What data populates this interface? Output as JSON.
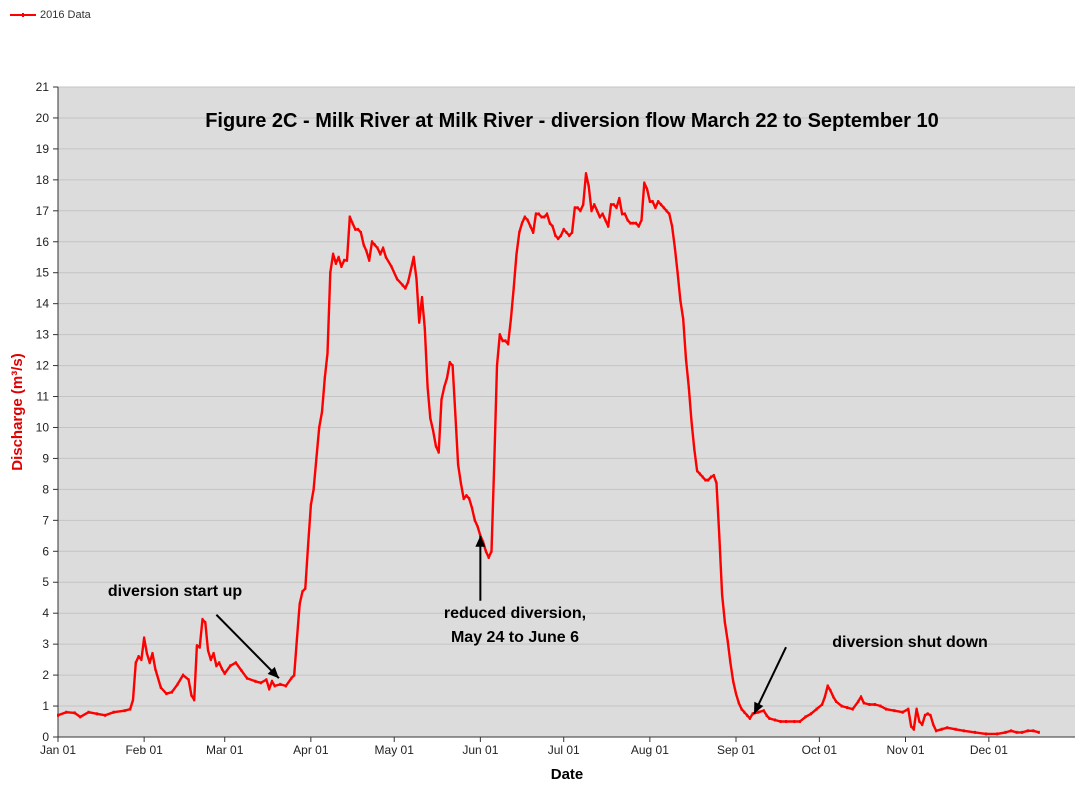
{
  "chart_data": {
    "type": "line",
    "title": "Figure 2C - Milk River at Milk River - diversion flow March 22 to September 10",
    "xlabel": "Date",
    "ylabel": "Discharge (m³/s)",
    "ylim": [
      0,
      21
    ],
    "xlim_days": [
      0,
      366
    ],
    "grid": "horizontal",
    "legend_position": "top-left",
    "colors": {
      "series": "#ff0000",
      "plot_bg": "#dcdcdc",
      "grid": "#c4c4c4",
      "ylabel": "#e00000"
    },
    "y_ticks": [
      "0",
      "1",
      "2",
      "3",
      "4",
      "5",
      "6",
      "7",
      "8",
      "9",
      "10",
      "11",
      "12",
      "13",
      "14",
      "15",
      "16",
      "17",
      "18",
      "19",
      "20",
      "21"
    ],
    "x_ticks": [
      {
        "label": "Jan 01",
        "day": 0
      },
      {
        "label": "Feb 01",
        "day": 31
      },
      {
        "label": "Mar 01",
        "day": 60
      },
      {
        "label": "Apr 01",
        "day": 91
      },
      {
        "label": "May 01",
        "day": 121
      },
      {
        "label": "Jun 01",
        "day": 152
      },
      {
        "label": "Jul 01",
        "day": 182
      },
      {
        "label": "Aug 01",
        "day": 213
      },
      {
        "label": "Sep 01",
        "day": 244
      },
      {
        "label": "Oct 01",
        "day": 274
      },
      {
        "label": "Nov 01",
        "day": 305
      },
      {
        "label": "Dec 01",
        "day": 335
      }
    ],
    "series": [
      {
        "name": "2016 Data",
        "points": [
          [
            0,
            0.7
          ],
          [
            3,
            0.8
          ],
          [
            6,
            0.78
          ],
          [
            8,
            0.65
          ],
          [
            11,
            0.8
          ],
          [
            14,
            0.75
          ],
          [
            17,
            0.7
          ],
          [
            20,
            0.8
          ],
          [
            24,
            0.85
          ],
          [
            26,
            0.9
          ],
          [
            27,
            1.2
          ],
          [
            28,
            2.4
          ],
          [
            29,
            2.6
          ],
          [
            30,
            2.5
          ],
          [
            31,
            3.2
          ],
          [
            32,
            2.7
          ],
          [
            33,
            2.4
          ],
          [
            34,
            2.7
          ],
          [
            35,
            2.2
          ],
          [
            37,
            1.6
          ],
          [
            39,
            1.4
          ],
          [
            41,
            1.45
          ],
          [
            43,
            1.7
          ],
          [
            45,
            2.0
          ],
          [
            47,
            1.85
          ],
          [
            48,
            1.35
          ],
          [
            49,
            1.2
          ],
          [
            50,
            2.95
          ],
          [
            51,
            2.9
          ],
          [
            52,
            3.8
          ],
          [
            53,
            3.7
          ],
          [
            54,
            2.8
          ],
          [
            55,
            2.5
          ],
          [
            56,
            2.7
          ],
          [
            57,
            2.3
          ],
          [
            58,
            2.4
          ],
          [
            59,
            2.2
          ],
          [
            60,
            2.05
          ],
          [
            62,
            2.3
          ],
          [
            64,
            2.4
          ],
          [
            66,
            2.15
          ],
          [
            68,
            1.9
          ],
          [
            71,
            1.8
          ],
          [
            73,
            1.75
          ],
          [
            75,
            1.85
          ],
          [
            76,
            1.55
          ],
          [
            77,
            1.8
          ],
          [
            78,
            1.65
          ],
          [
            80,
            1.7
          ],
          [
            82,
            1.65
          ],
          [
            84,
            1.9
          ],
          [
            85,
            2.0
          ],
          [
            86,
            3.2
          ],
          [
            87,
            4.3
          ],
          [
            88,
            4.7
          ],
          [
            89,
            4.8
          ],
          [
            90,
            6.2
          ],
          [
            91,
            7.5
          ],
          [
            92,
            8.0
          ],
          [
            93,
            9.0
          ],
          [
            94,
            10.0
          ],
          [
            95,
            10.5
          ],
          [
            96,
            11.6
          ],
          [
            97,
            12.4
          ],
          [
            98,
            15.0
          ],
          [
            99,
            15.6
          ],
          [
            100,
            15.3
          ],
          [
            101,
            15.5
          ],
          [
            102,
            15.2
          ],
          [
            103,
            15.4
          ],
          [
            104,
            15.4
          ],
          [
            105,
            16.8
          ],
          [
            106,
            16.6
          ],
          [
            107,
            16.4
          ],
          [
            108,
            16.4
          ],
          [
            109,
            16.3
          ],
          [
            110,
            15.9
          ],
          [
            111,
            15.7
          ],
          [
            112,
            15.4
          ],
          [
            113,
            16.0
          ],
          [
            114,
            15.9
          ],
          [
            115,
            15.8
          ],
          [
            116,
            15.6
          ],
          [
            117,
            15.8
          ],
          [
            118,
            15.5
          ],
          [
            120,
            15.2
          ],
          [
            122,
            14.8
          ],
          [
            124,
            14.6
          ],
          [
            125,
            14.5
          ],
          [
            126,
            14.7
          ],
          [
            127,
            15.1
          ],
          [
            128,
            15.5
          ],
          [
            129,
            14.8
          ],
          [
            130,
            13.4
          ],
          [
            131,
            14.2
          ],
          [
            132,
            13.2
          ],
          [
            133,
            11.3
          ],
          [
            134,
            10.3
          ],
          [
            135,
            9.9
          ],
          [
            136,
            9.4
          ],
          [
            137,
            9.2
          ],
          [
            138,
            10.9
          ],
          [
            139,
            11.3
          ],
          [
            140,
            11.6
          ],
          [
            141,
            12.1
          ],
          [
            142,
            12.0
          ],
          [
            143,
            10.4
          ],
          [
            144,
            8.8
          ],
          [
            145,
            8.2
          ],
          [
            146,
            7.7
          ],
          [
            147,
            7.8
          ],
          [
            148,
            7.7
          ],
          [
            149,
            7.4
          ],
          [
            150,
            7.0
          ],
          [
            151,
            6.8
          ],
          [
            152,
            6.5
          ],
          [
            153,
            6.3
          ],
          [
            154,
            6.0
          ],
          [
            155,
            5.8
          ],
          [
            156,
            6.0
          ],
          [
            157,
            8.9
          ],
          [
            158,
            12.0
          ],
          [
            159,
            13.0
          ],
          [
            160,
            12.8
          ],
          [
            161,
            12.8
          ],
          [
            162,
            12.7
          ],
          [
            163,
            13.5
          ],
          [
            164,
            14.5
          ],
          [
            165,
            15.6
          ],
          [
            166,
            16.3
          ],
          [
            167,
            16.6
          ],
          [
            168,
            16.8
          ],
          [
            169,
            16.7
          ],
          [
            170,
            16.5
          ],
          [
            171,
            16.3
          ],
          [
            172,
            16.9
          ],
          [
            173,
            16.9
          ],
          [
            174,
            16.8
          ],
          [
            175,
            16.8
          ],
          [
            176,
            16.9
          ],
          [
            177,
            16.6
          ],
          [
            178,
            16.5
          ],
          [
            179,
            16.2
          ],
          [
            180,
            16.1
          ],
          [
            181,
            16.2
          ],
          [
            182,
            16.4
          ],
          [
            183,
            16.3
          ],
          [
            184,
            16.2
          ],
          [
            185,
            16.3
          ],
          [
            186,
            17.1
          ],
          [
            187,
            17.1
          ],
          [
            188,
            17.0
          ],
          [
            189,
            17.2
          ],
          [
            190,
            18.2
          ],
          [
            191,
            17.8
          ],
          [
            192,
            17.0
          ],
          [
            193,
            17.2
          ],
          [
            194,
            17.0
          ],
          [
            195,
            16.8
          ],
          [
            196,
            16.9
          ],
          [
            197,
            16.7
          ],
          [
            198,
            16.5
          ],
          [
            199,
            17.2
          ],
          [
            200,
            17.2
          ],
          [
            201,
            17.1
          ],
          [
            202,
            17.4
          ],
          [
            203,
            16.9
          ],
          [
            204,
            16.9
          ],
          [
            205,
            16.7
          ],
          [
            206,
            16.6
          ],
          [
            207,
            16.6
          ],
          [
            208,
            16.6
          ],
          [
            209,
            16.5
          ],
          [
            210,
            16.7
          ],
          [
            211,
            17.9
          ],
          [
            212,
            17.7
          ],
          [
            213,
            17.3
          ],
          [
            214,
            17.3
          ],
          [
            215,
            17.1
          ],
          [
            216,
            17.3
          ],
          [
            217,
            17.2
          ],
          [
            218,
            17.1
          ],
          [
            219,
            17.0
          ],
          [
            220,
            16.9
          ],
          [
            221,
            16.5
          ],
          [
            222,
            15.8
          ],
          [
            223,
            15.0
          ],
          [
            224,
            14.1
          ],
          [
            225,
            13.5
          ],
          [
            226,
            12.2
          ],
          [
            227,
            11.3
          ],
          [
            228,
            10.2
          ],
          [
            229,
            9.3
          ],
          [
            230,
            8.6
          ],
          [
            231,
            8.5
          ],
          [
            232,
            8.4
          ],
          [
            233,
            8.3
          ],
          [
            234,
            8.3
          ],
          [
            235,
            8.4
          ],
          [
            236,
            8.45
          ],
          [
            237,
            8.2
          ],
          [
            238,
            6.5
          ],
          [
            239,
            4.6
          ],
          [
            240,
            3.7
          ],
          [
            241,
            3.1
          ],
          [
            242,
            2.4
          ],
          [
            243,
            1.8
          ],
          [
            244,
            1.4
          ],
          [
            245,
            1.1
          ],
          [
            246,
            0.9
          ],
          [
            247,
            0.8
          ],
          [
            248,
            0.7
          ],
          [
            249,
            0.6
          ],
          [
            250,
            0.75
          ],
          [
            252,
            0.8
          ],
          [
            254,
            0.85
          ],
          [
            255,
            0.7
          ],
          [
            256,
            0.6
          ],
          [
            258,
            0.55
          ],
          [
            260,
            0.5
          ],
          [
            262,
            0.5
          ],
          [
            265,
            0.5
          ],
          [
            267,
            0.5
          ],
          [
            269,
            0.65
          ],
          [
            271,
            0.75
          ],
          [
            273,
            0.9
          ],
          [
            275,
            1.05
          ],
          [
            276,
            1.3
          ],
          [
            277,
            1.65
          ],
          [
            278,
            1.5
          ],
          [
            279,
            1.3
          ],
          [
            280,
            1.15
          ],
          [
            282,
            1.0
          ],
          [
            284,
            0.95
          ],
          [
            286,
            0.9
          ],
          [
            288,
            1.15
          ],
          [
            289,
            1.3
          ],
          [
            290,
            1.1
          ],
          [
            292,
            1.05
          ],
          [
            294,
            1.05
          ],
          [
            296,
            1.0
          ],
          [
            298,
            0.9
          ],
          [
            301,
            0.85
          ],
          [
            304,
            0.8
          ],
          [
            306,
            0.9
          ],
          [
            307,
            0.35
          ],
          [
            308,
            0.25
          ],
          [
            309,
            0.9
          ],
          [
            310,
            0.5
          ],
          [
            311,
            0.4
          ],
          [
            312,
            0.7
          ],
          [
            313,
            0.75
          ],
          [
            314,
            0.7
          ],
          [
            315,
            0.4
          ],
          [
            316,
            0.2
          ],
          [
            318,
            0.25
          ],
          [
            320,
            0.3
          ],
          [
            323,
            0.25
          ],
          [
            326,
            0.2
          ],
          [
            330,
            0.15
          ],
          [
            334,
            0.1
          ],
          [
            338,
            0.1
          ],
          [
            341,
            0.15
          ],
          [
            343,
            0.2
          ],
          [
            345,
            0.15
          ],
          [
            347,
            0.15
          ],
          [
            349,
            0.2
          ],
          [
            351,
            0.2
          ],
          [
            353,
            0.15
          ]
        ]
      }
    ],
    "annotations": [
      {
        "lines": [
          "diversion start up"
        ],
        "arrow_from": [
          57,
          3.95
        ],
        "arrow_to": [
          79.5,
          1.9
        ]
      },
      {
        "lines": [
          "reduced diversion,",
          "May 24 to June 6"
        ],
        "arrow_from": [
          152,
          4.4
        ],
        "arrow_to": [
          152,
          6.5
        ]
      },
      {
        "lines": [
          "diversion shut down"
        ],
        "arrow_from": [
          262,
          2.9
        ],
        "arrow_to": [
          250.5,
          0.75
        ]
      }
    ]
  }
}
